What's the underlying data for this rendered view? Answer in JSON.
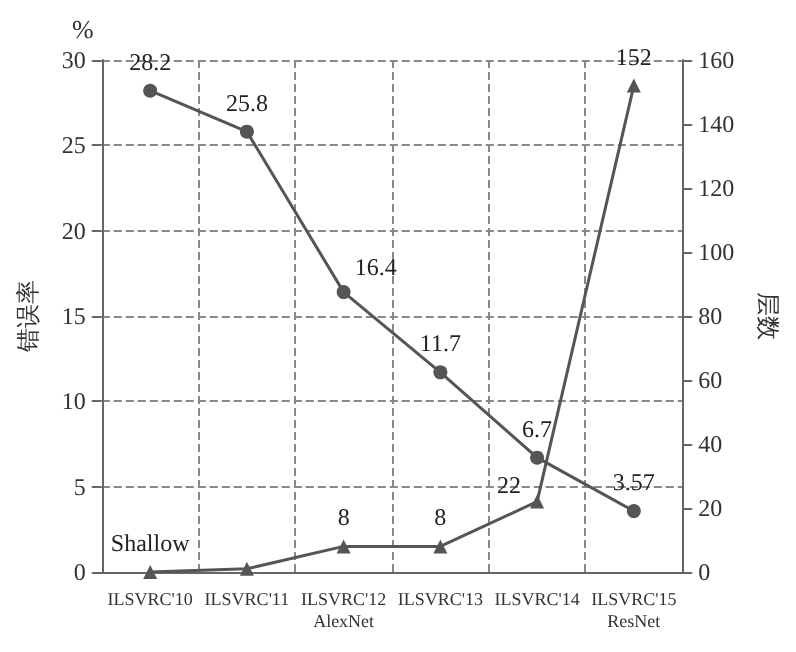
{
  "chart_data": {
    "type": "line",
    "ylabel": "错误率",
    "y2label": "层数",
    "categories": [
      "ILSVRC'10",
      "ILSVRC'11",
      "ILSVRC'12\nAlexNet",
      "ILSVRC'13",
      "ILSVRC'14",
      "ILSVRC'15\nResNet"
    ],
    "series": [
      {
        "color": "#555555",
        "marker": "circle",
        "values": [
          28.2,
          25.8,
          16.4,
          11.7,
          6.7,
          3.57
        ],
        "value_labels": [
          "28.2",
          "25.8",
          "16.4",
          "11.7",
          "6.7",
          "3.57"
        ]
      },
      {
        "color": "#555555",
        "marker": "triangle",
        "axis": "y2",
        "values": [
          0,
          1,
          8,
          8,
          22,
          152
        ],
        "value_labels": [
          "Shallow",
          null,
          "8",
          "8",
          "22",
          "152"
        ]
      }
    ],
    "ylim": [
      0,
      30
    ],
    "yticks": [
      0,
      5,
      10,
      15,
      20,
      25,
      30
    ],
    "y2lim": [
      0,
      160
    ],
    "y2ticks": [
      0,
      20,
      40,
      60,
      80,
      100,
      120,
      140,
      160
    ],
    "annotations": [
      "%"
    ],
    "grid": true,
    "line_style": "solid"
  }
}
